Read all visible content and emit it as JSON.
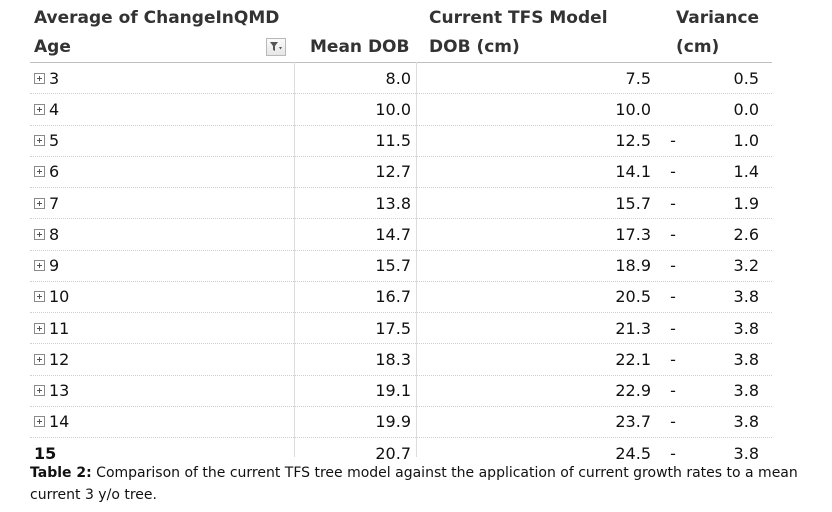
{
  "table": {
    "header_row1": {
      "pivot_label": "Average of ChangeInQMD",
      "current_tfs": "Current TFS Model",
      "variance": "Variance"
    },
    "header_row2": {
      "age": "Age",
      "mean_dob": "Mean DOB",
      "tfs_dob": "DOB (cm)",
      "variance_unit": "(cm)"
    },
    "filter_icon": "filter-dropdown-icon",
    "expander_icon": "expand-plus-icon",
    "rows": [
      {
        "age": "3",
        "mean_dob": "8.0",
        "tfs_dob": "7.5",
        "dash": "",
        "variance": "0.5",
        "expandable": true
      },
      {
        "age": "4",
        "mean_dob": "10.0",
        "tfs_dob": "10.0",
        "dash": "",
        "variance": "0.0",
        "expandable": true
      },
      {
        "age": "5",
        "mean_dob": "11.5",
        "tfs_dob": "12.5",
        "dash": "-",
        "variance": "1.0",
        "expandable": true
      },
      {
        "age": "6",
        "mean_dob": "12.7",
        "tfs_dob": "14.1",
        "dash": "-",
        "variance": "1.4",
        "expandable": true
      },
      {
        "age": "7",
        "mean_dob": "13.8",
        "tfs_dob": "15.7",
        "dash": "-",
        "variance": "1.9",
        "expandable": true
      },
      {
        "age": "8",
        "mean_dob": "14.7",
        "tfs_dob": "17.3",
        "dash": "-",
        "variance": "2.6",
        "expandable": true
      },
      {
        "age": "9",
        "mean_dob": "15.7",
        "tfs_dob": "18.9",
        "dash": "-",
        "variance": "3.2",
        "expandable": true
      },
      {
        "age": "10",
        "mean_dob": "16.7",
        "tfs_dob": "20.5",
        "dash": "-",
        "variance": "3.8",
        "expandable": true
      },
      {
        "age": "11",
        "mean_dob": "17.5",
        "tfs_dob": "21.3",
        "dash": "-",
        "variance": "3.8",
        "expandable": true
      },
      {
        "age": "12",
        "mean_dob": "18.3",
        "tfs_dob": "22.1",
        "dash": "-",
        "variance": "3.8",
        "expandable": true
      },
      {
        "age": "13",
        "mean_dob": "19.1",
        "tfs_dob": "22.9",
        "dash": "-",
        "variance": "3.8",
        "expandable": true
      },
      {
        "age": "14",
        "mean_dob": "19.9",
        "tfs_dob": "23.7",
        "dash": "-",
        "variance": "3.8",
        "expandable": true
      },
      {
        "age": "15",
        "mean_dob": "20.7",
        "tfs_dob": "24.5",
        "dash": "-",
        "variance": "3.8",
        "expandable": false
      }
    ]
  },
  "caption": {
    "label": "Table 2:",
    "text": " Comparison of the current TFS tree model against the application of current growth rates to a mean current 3 y/o tree."
  }
}
